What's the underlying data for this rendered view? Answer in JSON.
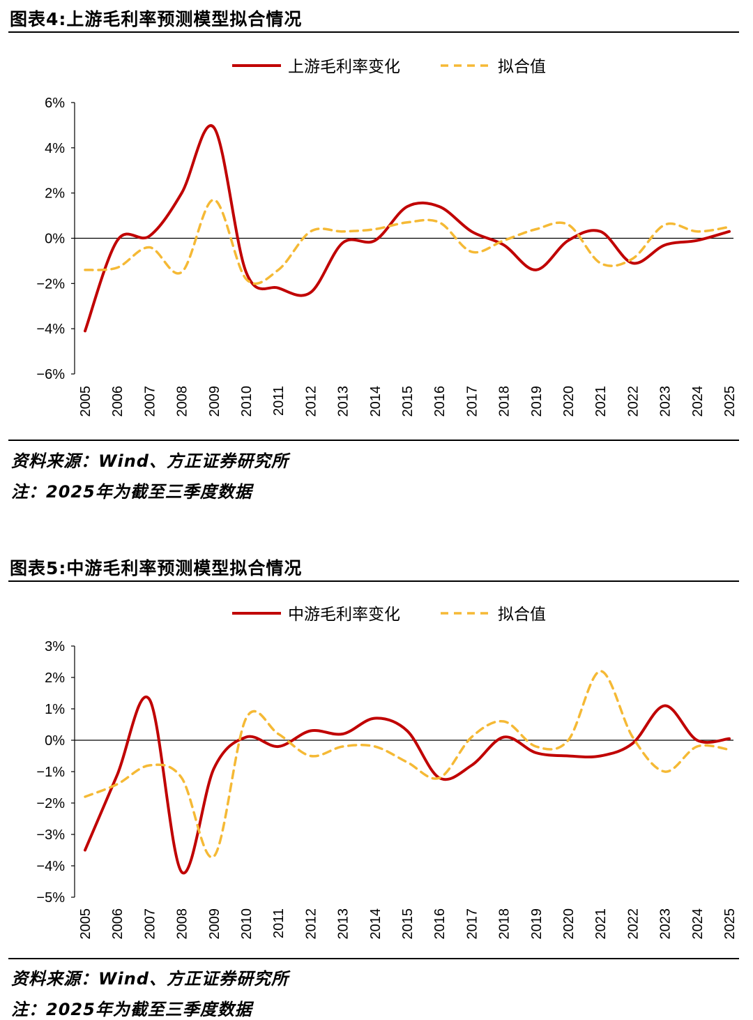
{
  "colors": {
    "actual": "#C00000",
    "fitted": "#F5B935",
    "axis": "#000000"
  },
  "figures": [
    {
      "title": "图表4:上游毛利率预测模型拟合情况",
      "source": "资料来源：Wind、方正证券研究所",
      "note": "注：2025年为截至三季度数据"
    },
    {
      "title": "图表5:中游毛利率预测模型拟合情况",
      "source": "资料来源：Wind、方正证券研究所",
      "note": "注：2025年为截至三季度数据"
    }
  ],
  "chart_data": [
    {
      "type": "line",
      "title": "图表4:上游毛利率预测模型拟合情况",
      "xlabel": "",
      "ylabel": "",
      "categories": [
        "2005",
        "2006",
        "2007",
        "2008",
        "2009",
        "2010",
        "2011",
        "2012",
        "2013",
        "2014",
        "2015",
        "2016",
        "2017",
        "2018",
        "2019",
        "2020",
        "2021",
        "2022",
        "2023",
        "2024",
        "2025"
      ],
      "ylim": [
        -6,
        6
      ],
      "yticks": [
        -6,
        -4,
        -2,
        0,
        2,
        4,
        6
      ],
      "ytick_labels": [
        "−6%",
        "−4%",
        "−2%",
        "0%",
        "2%",
        "4%",
        "6%"
      ],
      "legend_position": "top-center",
      "series": [
        {
          "name": "上游毛利率变化",
          "style": "solid",
          "values": [
            -4.1,
            -0.1,
            0.1,
            2.0,
            4.9,
            -1.5,
            -2.2,
            -2.4,
            -0.2,
            -0.1,
            1.4,
            1.4,
            0.3,
            -0.3,
            -1.4,
            -0.1,
            0.3,
            -1.1,
            -0.3,
            -0.1,
            0.3
          ]
        },
        {
          "name": "拟合值",
          "style": "dashed",
          "values": [
            -1.4,
            -1.3,
            -0.4,
            -1.5,
            1.7,
            -1.8,
            -1.4,
            0.3,
            0.3,
            0.4,
            0.7,
            0.7,
            -0.6,
            -0.1,
            0.4,
            0.6,
            -1.1,
            -0.9,
            0.6,
            0.3,
            0.5
          ]
        }
      ]
    },
    {
      "type": "line",
      "title": "图表5:中游毛利率预测模型拟合情况",
      "xlabel": "",
      "ylabel": "",
      "categories": [
        "2005",
        "2006",
        "2007",
        "2008",
        "2009",
        "2010",
        "2011",
        "2012",
        "2013",
        "2014",
        "2015",
        "2016",
        "2017",
        "2018",
        "2019",
        "2020",
        "2021",
        "2022",
        "2023",
        "2024",
        "2025"
      ],
      "ylim": [
        -5,
        3
      ],
      "yticks": [
        -5,
        -4,
        -3,
        -2,
        -1,
        0,
        1,
        2,
        3
      ],
      "ytick_labels": [
        "−5%",
        "−4%",
        "−3%",
        "−2%",
        "−1%",
        "0%",
        "1%",
        "2%",
        "3%"
      ],
      "legend_position": "top-center",
      "series": [
        {
          "name": "中游毛利率变化",
          "style": "solid",
          "values": [
            -3.5,
            -1.1,
            1.3,
            -4.2,
            -0.9,
            0.1,
            -0.2,
            0.3,
            0.2,
            0.7,
            0.3,
            -1.2,
            -0.8,
            0.1,
            -0.4,
            -0.5,
            -0.5,
            -0.1,
            1.1,
            0.0,
            0.05
          ]
        },
        {
          "name": "拟合值",
          "style": "dashed",
          "values": [
            -1.8,
            -1.4,
            -0.8,
            -1.2,
            -3.7,
            0.7,
            0.2,
            -0.5,
            -0.2,
            -0.2,
            -0.7,
            -1.2,
            0.1,
            0.6,
            -0.2,
            0.0,
            2.2,
            0.1,
            -1.0,
            -0.2,
            -0.3
          ]
        }
      ]
    }
  ]
}
